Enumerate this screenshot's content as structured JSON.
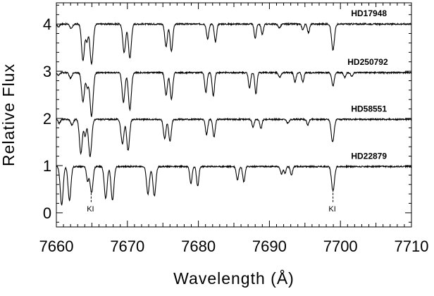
{
  "chart_data": {
    "type": "line",
    "title": "",
    "xlabel": "Wavelength (Å)",
    "ylabel": "Relative Flux",
    "xlim": [
      7660,
      7710
    ],
    "ylim": [
      -0.3,
      4.45
    ],
    "xticks": [
      7660,
      7670,
      7680,
      7690,
      7700,
      7710
    ],
    "yticks": [
      0,
      1,
      2,
      3,
      4
    ],
    "grid": false,
    "series": [
      {
        "name": "HD17948",
        "continuum": 4.0,
        "label_x": 7701.5,
        "lines": [
          {
            "x": 7660.3,
            "depth": 0.06,
            "width": 0.16
          },
          {
            "x": 7662.1,
            "depth": 0.1,
            "width": 0.18
          },
          {
            "x": 7663.75,
            "depth": 0.78,
            "width": 0.2
          },
          {
            "x": 7664.3,
            "depth": 0.35,
            "width": 0.16
          },
          {
            "x": 7664.95,
            "depth": 0.84,
            "width": 0.22
          },
          {
            "x": 7669.55,
            "depth": 0.6,
            "width": 0.2
          },
          {
            "x": 7670.35,
            "depth": 0.72,
            "width": 0.2
          },
          {
            "x": 7675.45,
            "depth": 0.48,
            "width": 0.18
          },
          {
            "x": 7676.2,
            "depth": 0.58,
            "width": 0.18
          },
          {
            "x": 7681.3,
            "depth": 0.32,
            "width": 0.16
          },
          {
            "x": 7682.4,
            "depth": 0.38,
            "width": 0.16
          },
          {
            "x": 7688.0,
            "depth": 0.3,
            "width": 0.15
          },
          {
            "x": 7689.0,
            "depth": 0.22,
            "width": 0.15
          },
          {
            "x": 7691.4,
            "depth": 0.08,
            "width": 0.18
          },
          {
            "x": 7694.7,
            "depth": 0.12,
            "width": 0.15
          },
          {
            "x": 7695.5,
            "depth": 0.18,
            "width": 0.15
          },
          {
            "x": 7698.95,
            "depth": 0.55,
            "width": 0.2
          }
        ]
      },
      {
        "name": "HD250792",
        "continuum": 2.97,
        "label_x": 7701.0,
        "lines": [
          {
            "x": 7660.3,
            "depth": 0.06,
            "width": 0.16
          },
          {
            "x": 7662.0,
            "depth": 0.12,
            "width": 0.18
          },
          {
            "x": 7663.75,
            "depth": 0.62,
            "width": 0.2
          },
          {
            "x": 7664.35,
            "depth": 0.3,
            "width": 0.16
          },
          {
            "x": 7664.95,
            "depth": 0.92,
            "width": 0.22
          },
          {
            "x": 7669.45,
            "depth": 0.62,
            "width": 0.2
          },
          {
            "x": 7670.35,
            "depth": 0.78,
            "width": 0.2
          },
          {
            "x": 7675.45,
            "depth": 0.48,
            "width": 0.18
          },
          {
            "x": 7676.2,
            "depth": 0.56,
            "width": 0.18
          },
          {
            "x": 7681.05,
            "depth": 0.42,
            "width": 0.16
          },
          {
            "x": 7682.1,
            "depth": 0.5,
            "width": 0.16
          },
          {
            "x": 7687.2,
            "depth": 0.32,
            "width": 0.15
          },
          {
            "x": 7688.1,
            "depth": 0.45,
            "width": 0.15
          },
          {
            "x": 7691.45,
            "depth": 0.1,
            "width": 0.18
          },
          {
            "x": 7693.6,
            "depth": 0.2,
            "width": 0.15
          },
          {
            "x": 7694.7,
            "depth": 0.2,
            "width": 0.15
          },
          {
            "x": 7698.95,
            "depth": 0.28,
            "width": 0.18
          },
          {
            "x": 7700.6,
            "depth": 0.1,
            "width": 0.15
          },
          {
            "x": 7701.6,
            "depth": 0.08,
            "width": 0.15
          }
        ]
      },
      {
        "name": "HD58551",
        "continuum": 1.98,
        "label_x": 7701.5,
        "lines": [
          {
            "x": 7660.4,
            "depth": 0.08,
            "width": 0.16
          },
          {
            "x": 7662.2,
            "depth": 0.12,
            "width": 0.18
          },
          {
            "x": 7663.45,
            "depth": 0.72,
            "width": 0.2
          },
          {
            "x": 7664.05,
            "depth": 0.35,
            "width": 0.16
          },
          {
            "x": 7664.75,
            "depth": 0.78,
            "width": 0.22
          },
          {
            "x": 7669.3,
            "depth": 0.52,
            "width": 0.2
          },
          {
            "x": 7670.1,
            "depth": 0.66,
            "width": 0.2
          },
          {
            "x": 7675.25,
            "depth": 0.4,
            "width": 0.18
          },
          {
            "x": 7676.0,
            "depth": 0.46,
            "width": 0.18
          },
          {
            "x": 7681.15,
            "depth": 0.32,
            "width": 0.16
          },
          {
            "x": 7682.2,
            "depth": 0.38,
            "width": 0.16
          },
          {
            "x": 7687.7,
            "depth": 0.16,
            "width": 0.15
          },
          {
            "x": 7688.8,
            "depth": 0.2,
            "width": 0.15
          },
          {
            "x": 7692.6,
            "depth": 0.08,
            "width": 0.18
          },
          {
            "x": 7695.4,
            "depth": 0.12,
            "width": 0.15
          },
          {
            "x": 7698.9,
            "depth": 0.48,
            "width": 0.2
          }
        ]
      },
      {
        "name": "HD22879",
        "continuum": 0.98,
        "label_x": 7701.5,
        "lines": [
          {
            "x": 7660.75,
            "depth": 0.82,
            "width": 0.2
          },
          {
            "x": 7661.85,
            "depth": 0.72,
            "width": 0.2
          },
          {
            "x": 7664.4,
            "depth": 0.3,
            "width": 0.16
          },
          {
            "x": 7664.95,
            "depth": 0.56,
            "width": 0.2
          },
          {
            "x": 7666.95,
            "depth": 0.68,
            "width": 0.2
          },
          {
            "x": 7667.9,
            "depth": 0.72,
            "width": 0.2
          },
          {
            "x": 7672.9,
            "depth": 0.58,
            "width": 0.2
          },
          {
            "x": 7673.8,
            "depth": 0.62,
            "width": 0.2
          },
          {
            "x": 7678.95,
            "depth": 0.36,
            "width": 0.16
          },
          {
            "x": 7679.9,
            "depth": 0.42,
            "width": 0.16
          },
          {
            "x": 7685.5,
            "depth": 0.28,
            "width": 0.16
          },
          {
            "x": 7686.4,
            "depth": 0.32,
            "width": 0.16
          },
          {
            "x": 7691.7,
            "depth": 0.16,
            "width": 0.15
          },
          {
            "x": 7692.2,
            "depth": 0.14,
            "width": 0.15
          },
          {
            "x": 7693.1,
            "depth": 0.18,
            "width": 0.15
          },
          {
            "x": 7698.95,
            "depth": 0.52,
            "width": 0.2
          }
        ]
      }
    ],
    "annotations": [
      {
        "text": "KI",
        "x": 7664.9,
        "y_top": 0.42,
        "y_bottom": 0.22
      },
      {
        "text": "KI",
        "x": 7698.95,
        "y_top": 0.42,
        "y_bottom": 0.22
      }
    ]
  }
}
